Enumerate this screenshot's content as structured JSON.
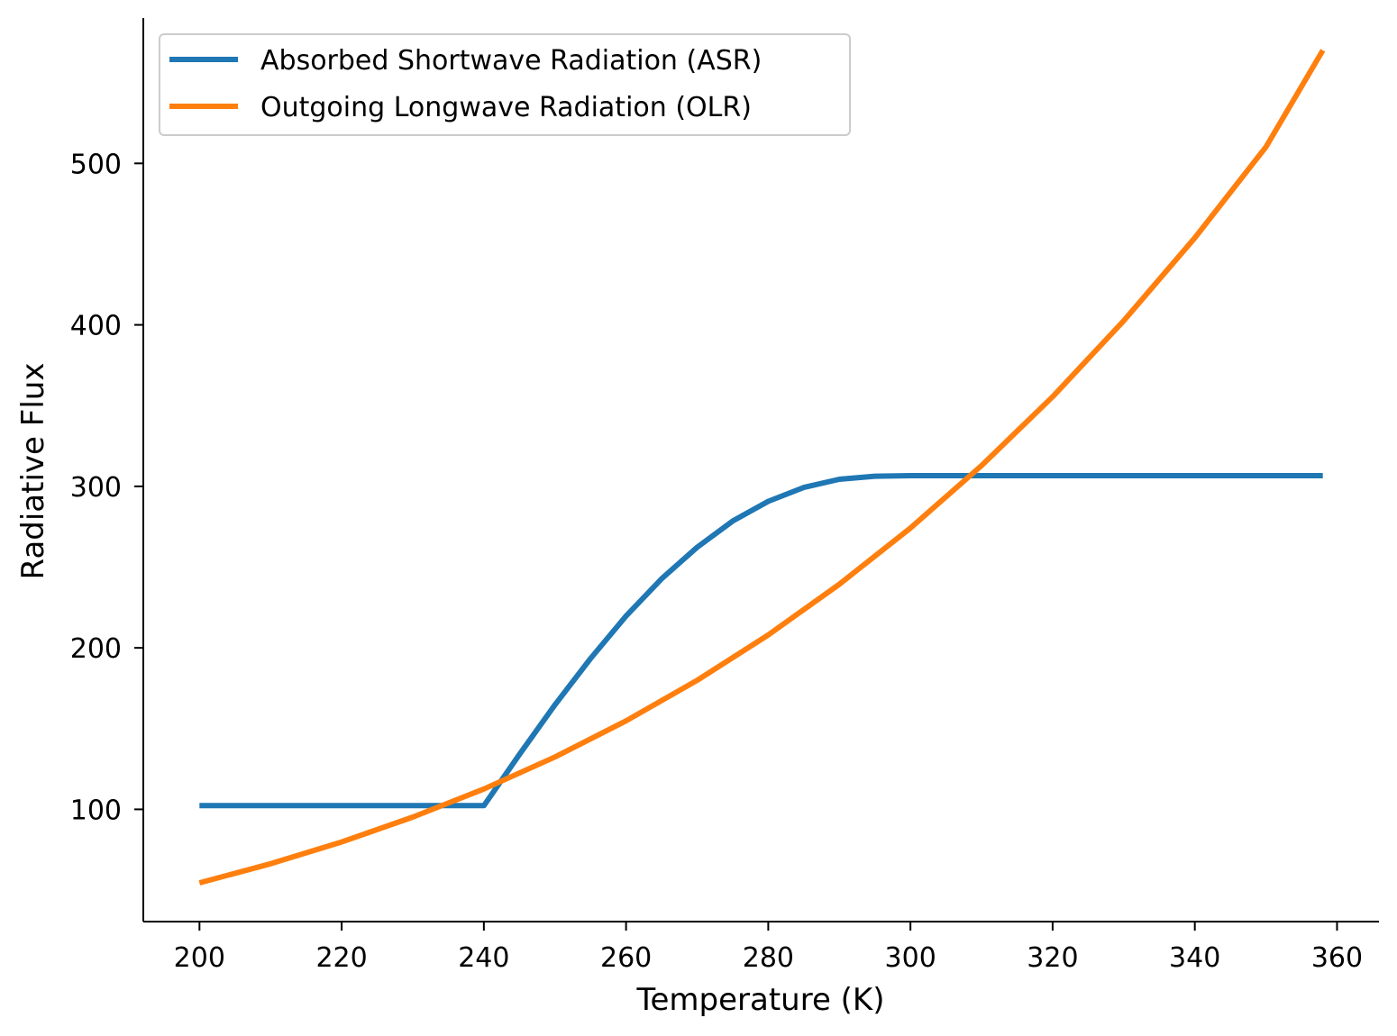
{
  "chart_data": {
    "type": "line",
    "title": "",
    "xlabel": "Temperature (K)",
    "ylabel": "Radiative Flux",
    "xlim": [
      192.1,
      365.9
    ],
    "ylim": [
      30.5,
      590
    ],
    "xticks": [
      200,
      220,
      240,
      260,
      280,
      300,
      320,
      340,
      360
    ],
    "yticks": [
      100,
      200,
      300,
      400,
      500
    ],
    "grid": false,
    "legend_position": "top-left",
    "series": [
      {
        "name": "Absorbed Shortwave Radiation (ASR)",
        "color": "#1f77b4",
        "x": [
          200,
          210,
          220,
          230,
          240,
          245,
          250,
          255,
          260,
          265,
          270,
          275,
          280,
          285,
          290,
          295,
          300,
          310,
          320,
          330,
          340,
          350,
          358
        ],
        "y": [
          102.3,
          102.3,
          102.3,
          102.3,
          102.3,
          134,
          164.7,
          193.4,
          219.7,
          242.8,
          262.3,
          278.5,
          290.7,
          299.3,
          304.4,
          306.3,
          306.6,
          306.6,
          306.6,
          306.6,
          306.6,
          306.6,
          306.6
        ]
      },
      {
        "name": "Outgoing Longwave Radiation (OLR)",
        "color": "#ff7f0e",
        "x": [
          200,
          210,
          220,
          230,
          240,
          250,
          260,
          270,
          280,
          290,
          300,
          310,
          320,
          330,
          340,
          350,
          358
        ],
        "y": [
          54.5,
          66.3,
          79.8,
          95.2,
          112.6,
          132.4,
          154.8,
          179.9,
          208.0,
          239.4,
          274.2,
          312.8,
          355.5,
          402.5,
          453.9,
          510.2,
          570.0
        ]
      }
    ]
  }
}
